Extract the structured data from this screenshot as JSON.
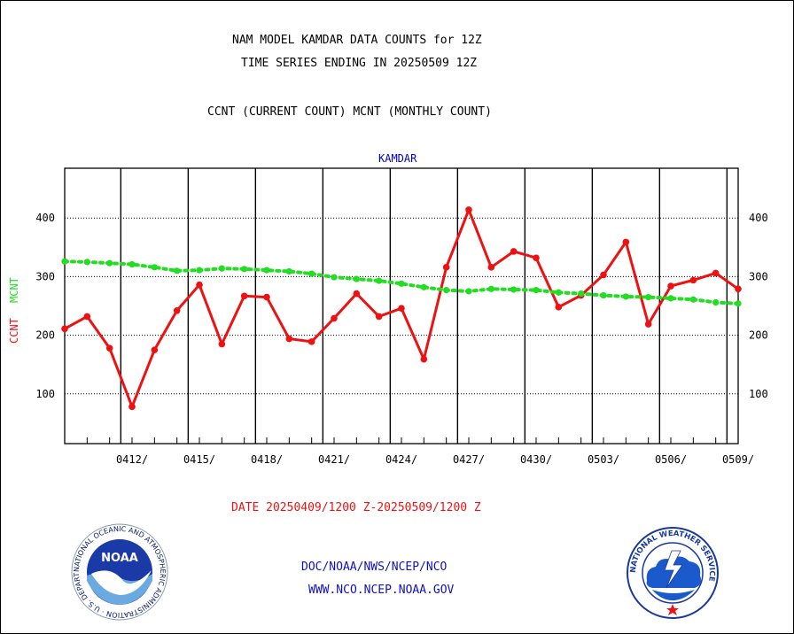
{
  "header": {
    "title_line1": "NAM MODEL KAMDAR DATA COUNTS for 12Z",
    "title_line2": "TIME SERIES ENDING IN 20250509 12Z",
    "subtitle": "CCNT (CURRENT COUNT) MCNT (MONTHLY COUNT)"
  },
  "footer": {
    "date_range": "DATE 20250409/1200 Z-20250509/1200 Z",
    "link1": "DOC/NOAA/NWS/NCEP/NCO",
    "link2": "WWW.NCO.NCEP.NOAA.GOV"
  },
  "logos": {
    "noaa_text": "NOAA",
    "noaa_ring": "NATIONAL OCEANIC AND ATMOSPHERIC ADMINISTRATION · U.S. DEPARTMENT OF COMMERCE",
    "nws_ring": "NATIONAL WEATHER SERVICE"
  },
  "colors": {
    "ccnt": "#ee1111",
    "mcnt": "#22dd22",
    "station": "#0000cc",
    "links": "#1111bb"
  },
  "chart_data": {
    "type": "line",
    "station_label": "KAMDAR",
    "ylabel_ccnt": "CCNT",
    "ylabel_mcnt": "MCNT",
    "ylim": [
      15,
      485
    ],
    "yticks": [
      100,
      200,
      300,
      400
    ],
    "x_range": [
      0,
      30
    ],
    "x_tick_days": [
      3,
      6,
      9,
      12,
      15,
      18,
      21,
      24,
      27,
      30
    ],
    "x_tick_labels": [
      "0412/",
      "0415/",
      "0418/",
      "0421/",
      "0424/",
      "0427/",
      "0430/",
      "0503/",
      "0506/",
      "0509/"
    ],
    "x_major_gridlines": [
      2.5,
      5.5,
      8.5,
      11.5,
      14.5,
      17.5,
      20.5,
      23.5,
      26.5,
      29.5
    ],
    "grid": true,
    "series": [
      {
        "name": "CCNT",
        "color": "#ee1111",
        "x": [
          0,
          1,
          2,
          3,
          4,
          5,
          6,
          7,
          8,
          9,
          10,
          11,
          12,
          13,
          14,
          15,
          16,
          17,
          18,
          19,
          20,
          21,
          22,
          23,
          24,
          25,
          26,
          27,
          28,
          29,
          30
        ],
        "values": [
          211,
          232,
          178,
          78,
          175,
          242,
          286,
          185,
          267,
          265,
          194,
          189,
          229,
          271,
          232,
          246,
          159,
          316,
          414,
          316,
          343,
          332,
          248,
          268,
          303,
          359,
          219,
          284,
          294,
          306,
          279
        ]
      },
      {
        "name": "MCNT",
        "color": "#22dd22",
        "x": [
          0,
          1,
          2,
          3,
          4,
          5,
          6,
          7,
          8,
          9,
          10,
          11,
          12,
          13,
          14,
          15,
          16,
          17,
          18,
          19,
          20,
          21,
          22,
          23,
          24,
          25,
          26,
          27,
          28,
          29,
          30
        ],
        "values": [
          326,
          325,
          323,
          321,
          316,
          310,
          311,
          314,
          313,
          311,
          309,
          305,
          299,
          296,
          293,
          288,
          282,
          277,
          275,
          279,
          278,
          277,
          273,
          271,
          268,
          266,
          265,
          263,
          261,
          256,
          254
        ]
      }
    ]
  }
}
